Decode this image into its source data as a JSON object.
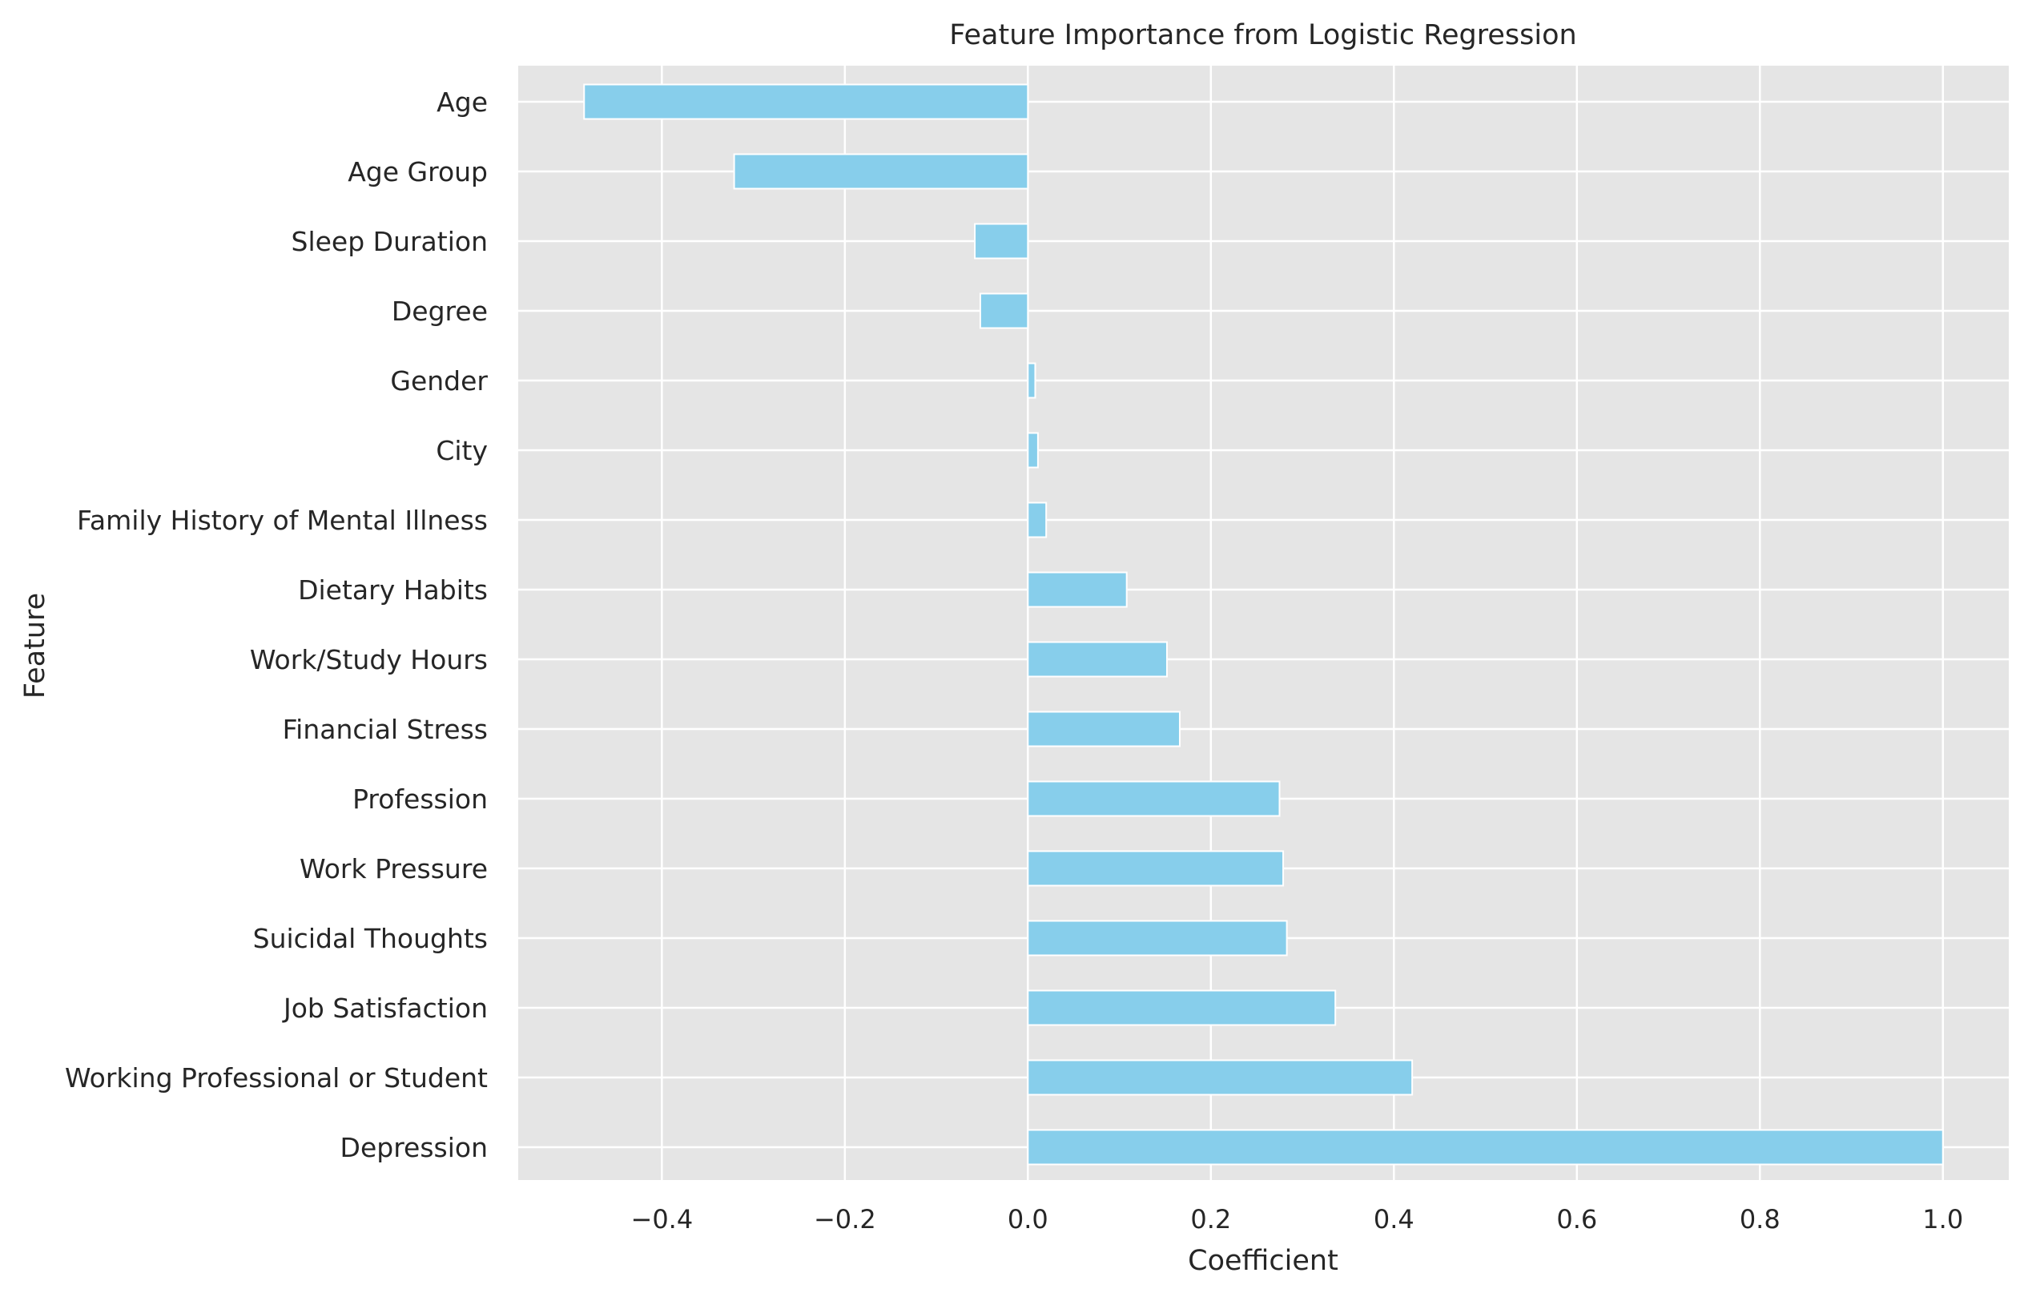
{
  "chart_data": {
    "type": "bar",
    "orientation": "horizontal",
    "title": "Feature Importance from Logistic Regression",
    "xlabel": "Coefficient",
    "ylabel": "Feature",
    "categories": [
      "Age",
      "Age Group",
      "Sleep Duration",
      "Degree",
      "Gender",
      "City",
      "Family History of Mental Illness",
      "Dietary Habits",
      "Work/Study Hours",
      "Financial Stress",
      "Profession",
      "Work Pressure",
      "Suicidal Thoughts",
      "Job Satisfaction",
      "Working Professional or Student",
      "Depression"
    ],
    "values": [
      -0.485,
      -0.321,
      -0.058,
      -0.052,
      0.008,
      0.011,
      0.02,
      0.108,
      0.152,
      0.166,
      0.275,
      0.279,
      0.283,
      0.336,
      0.42,
      1.0
    ],
    "xlim": [
      -0.557,
      1.072
    ],
    "xticks": [
      -0.4,
      -0.2,
      0.0,
      0.2,
      0.4,
      0.6,
      0.8,
      1.0
    ],
    "xtick_labels": [
      "−0.4",
      "−0.2",
      "0.0",
      "0.2",
      "0.4",
      "0.6",
      "0.8",
      "1.0"
    ],
    "grid": true,
    "legend": false,
    "colors": {
      "bar": "#87ceeb",
      "bar_edge": "#ffffff",
      "axes_background": "#e5e5e5",
      "grid": "#ffffff",
      "text": "#262626"
    }
  }
}
